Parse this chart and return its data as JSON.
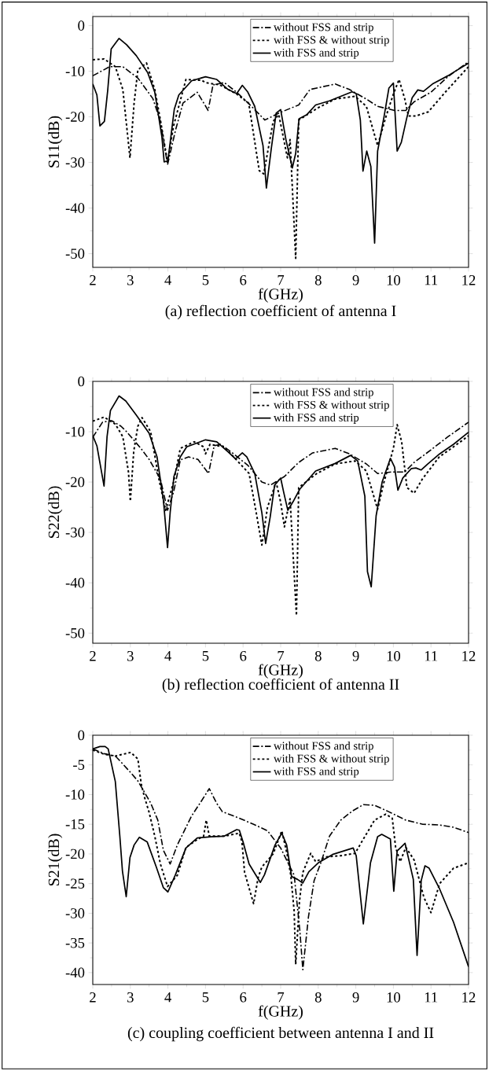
{
  "chart_data": [
    {
      "type": "line",
      "title": "(a)  reflection coefficient of antenna I",
      "xlabel": "f(GHz)",
      "ylabel": "S11(dB)",
      "xlim": [
        2,
        12
      ],
      "ylim": [
        -53,
        2
      ],
      "xticks": [
        2,
        3,
        4,
        5,
        6,
        7,
        8,
        9,
        10,
        11,
        12
      ],
      "yticks": [
        -50,
        -40,
        -30,
        -20,
        -10,
        0
      ],
      "legend": "top right",
      "grid": false,
      "marker": "none",
      "series": [
        {
          "name": "without FSS and strip",
          "color": "#000000",
          "line_style": "dashdot",
          "x": [
            2,
            2.45,
            2.8,
            3.2,
            3.6,
            3.8,
            3.99,
            4.2,
            4.4,
            4.78,
            5.07,
            5.2,
            5.5,
            5.83,
            6.2,
            6.58,
            7.0,
            7.48,
            7.78,
            8.45,
            8.83,
            9.28,
            9.58,
            10.03,
            10.33,
            10.55,
            11.0,
            11.45,
            12
          ],
          "values": [
            -11,
            -9,
            -9,
            -11.5,
            -16,
            -21,
            -30.5,
            -23,
            -17,
            -14.6,
            -18.6,
            -13,
            -12.5,
            -14.6,
            -17.5,
            -20.7,
            -19,
            -17.4,
            -14,
            -12.8,
            -14,
            -16.1,
            -17.7,
            -18.6,
            -18.6,
            -16.7,
            -14.6,
            -11.2,
            -7.9
          ]
        },
        {
          "name": "with FSS & without strip",
          "color": "#000000",
          "line_style": "dotted",
          "x": [
            2,
            2.3,
            2.6,
            2.8,
            2.99,
            3.1,
            3.2,
            3.43,
            3.65,
            3.8,
            3.99,
            4.15,
            4.48,
            4.9,
            5.0,
            5.38,
            5.83,
            6.15,
            6.43,
            6.55,
            6.8,
            6.95,
            7.18,
            7.25,
            7.4,
            7.48,
            8.0,
            8.45,
            8.98,
            9.28,
            9.58,
            9.8,
            10.0,
            10.15,
            10.3,
            10.4,
            10.6,
            10.93,
            11.38,
            12
          ],
          "values": [
            -7.5,
            -7.3,
            -9,
            -14,
            -29,
            -17,
            -9.7,
            -8.2,
            -14,
            -20.7,
            -29.9,
            -22,
            -11.8,
            -12,
            -12.5,
            -13,
            -15,
            -17,
            -31.8,
            -32.5,
            -21,
            -19.5,
            -29,
            -25,
            -51,
            -20.7,
            -18,
            -16.1,
            -15.5,
            -17.7,
            -26.3,
            -20,
            -15,
            -11.8,
            -16,
            -19.8,
            -19.8,
            -18.9,
            -14.6,
            -9
          ]
        },
        {
          "name": "with FSS and strip",
          "color": "#000000",
          "line_style": "solid",
          "x": [
            2,
            2.11,
            2.19,
            2.31,
            2.4,
            2.49,
            2.7,
            2.9,
            3.16,
            3.46,
            3.65,
            3.84,
            3.9,
            4.0,
            4.17,
            4.29,
            4.63,
            5.0,
            5.3,
            5.6,
            5.83,
            5.98,
            6.12,
            6.31,
            6.53,
            6.62,
            6.75,
            6.88,
            7.0,
            7.14,
            7.31,
            7.4,
            7.49,
            7.7,
            7.93,
            8.3,
            8.9,
            9.01,
            9.12,
            9.19,
            9.29,
            9.4,
            9.5,
            9.58,
            9.75,
            9.88,
            10.0,
            10.1,
            10.21,
            10.36,
            10.5,
            10.65,
            10.8,
            11.04,
            11.45,
            12
          ],
          "values": [
            -12.8,
            -15.2,
            -22,
            -21,
            -14,
            -5.1,
            -2.8,
            -4.2,
            -6.6,
            -10.3,
            -14.6,
            -24.4,
            -29.9,
            -29.6,
            -18.3,
            -15.2,
            -12.1,
            -11.2,
            -11.8,
            -14,
            -14.9,
            -13.1,
            -14.5,
            -17.7,
            -26.3,
            -35.6,
            -27,
            -19.2,
            -18.4,
            -25,
            -31.2,
            -28,
            -20.4,
            -19.5,
            -17.4,
            -16.5,
            -14.5,
            -14.9,
            -20.7,
            -31.9,
            -27.5,
            -30.9,
            -47.7,
            -27.5,
            -20,
            -13.7,
            -12.6,
            -27.5,
            -25.6,
            -20.1,
            -15.8,
            -14.1,
            -14.4,
            -12.8,
            -11,
            -8.2
          ]
        }
      ]
    },
    {
      "type": "line",
      "title": "(b)  reflection coefficient of antenna II",
      "xlabel": "f(GHz)",
      "ylabel": "S22(dB)",
      "xlim": [
        2,
        12
      ],
      "ylim": [
        -52,
        0
      ],
      "xticks": [
        2,
        3,
        4,
        5,
        6,
        7,
        8,
        9,
        10,
        11,
        12
      ],
      "yticks": [
        -50,
        -40,
        -30,
        -20,
        -10,
        0
      ],
      "legend": "top right",
      "grid": false,
      "marker": "none",
      "series": [
        {
          "name": "without FSS and strip",
          "color": "#000000",
          "line_style": "dashdot",
          "x": [
            2,
            2.26,
            2.5,
            2.75,
            2.9,
            3.28,
            3.5,
            3.8,
            3.99,
            4.15,
            4.33,
            4.55,
            4.8,
            5.08,
            5.23,
            5.4,
            5.75,
            6.13,
            6.5,
            6.73,
            7.1,
            7.48,
            7.85,
            8.45,
            8.83,
            9.28,
            9.58,
            9.95,
            10.3,
            10.55,
            11.0,
            11.45,
            12
          ],
          "values": [
            -11.1,
            -8.1,
            -7.8,
            -8.9,
            -10,
            -13.3,
            -15.5,
            -19.4,
            -25.6,
            -22,
            -15.6,
            -15,
            -15.5,
            -18.3,
            -12.8,
            -12.5,
            -14.4,
            -16.7,
            -20,
            -20.6,
            -18.9,
            -16.1,
            -14.2,
            -13.3,
            -14.4,
            -16.4,
            -18.3,
            -18,
            -18,
            -16.1,
            -13.6,
            -11,
            -8.1
          ]
        },
        {
          "name": "with FSS & without strip",
          "color": "#000000",
          "line_style": "dotted",
          "x": [
            2,
            2.3,
            2.6,
            2.8,
            2.95,
            3.0,
            3.09,
            3.2,
            3.31,
            3.54,
            3.76,
            3.94,
            4.15,
            4.33,
            4.7,
            4.95,
            5.0,
            5.12,
            5.5,
            5.75,
            6.16,
            6.35,
            6.5,
            6.65,
            6.88,
            7.0,
            7.1,
            7.25,
            7.42,
            7.48,
            7.96,
            8.45,
            8.98,
            9.28,
            9.58,
            9.75,
            10.0,
            10.1,
            10.22,
            10.36,
            10.55,
            10.77,
            11.22,
            11.6,
            12
          ],
          "values": [
            -7.9,
            -7.1,
            -8.5,
            -11,
            -18,
            -23.8,
            -13.9,
            -8.9,
            -7.2,
            -10,
            -19.4,
            -25.6,
            -20,
            -13.3,
            -12,
            -13,
            -14.4,
            -12.5,
            -13,
            -15,
            -18.3,
            -26.1,
            -32.5,
            -25,
            -20,
            -24,
            -28.9,
            -23.3,
            -46.5,
            -21.1,
            -18.3,
            -16.4,
            -15.8,
            -17.8,
            -25.4,
            -20,
            -13.3,
            -8.6,
            -12,
            -21.1,
            -22.2,
            -19.4,
            -15,
            -13,
            -10.8
          ]
        },
        {
          "name": "with FSS and strip",
          "color": "#000000",
          "line_style": "solid",
          "x": [
            2,
            2.11,
            2.3,
            2.38,
            2.47,
            2.7,
            2.88,
            3.16,
            3.5,
            3.71,
            3.88,
            3.99,
            4.06,
            4.16,
            4.33,
            4.5,
            5.0,
            5.3,
            5.6,
            5.8,
            5.98,
            6.1,
            6.31,
            6.5,
            6.6,
            6.72,
            6.84,
            7.0,
            7.08,
            7.19,
            7.33,
            7.51,
            7.93,
            8.45,
            8.86,
            9.05,
            9.24,
            9.31,
            9.41,
            9.54,
            9.7,
            9.92,
            10.03,
            10.12,
            10.25,
            10.48,
            10.6,
            10.74,
            10.9,
            11.23,
            11.6,
            12
          ],
          "values": [
            -10.8,
            -12.8,
            -20.8,
            -11,
            -5.8,
            -2.9,
            -3.9,
            -6.7,
            -10.3,
            -15,
            -23.6,
            -33,
            -26,
            -18.9,
            -15,
            -13,
            -11.6,
            -12,
            -14,
            -15.4,
            -14.2,
            -15,
            -18.3,
            -26.1,
            -32.2,
            -27,
            -20.6,
            -19.2,
            -22,
            -25.6,
            -23.9,
            -21.4,
            -17.8,
            -16.3,
            -14.7,
            -15.8,
            -22.8,
            -37.8,
            -40.8,
            -26.7,
            -20,
            -15.3,
            -17,
            -21.6,
            -19.2,
            -17.3,
            -17.2,
            -17.6,
            -16.5,
            -14.4,
            -12.5,
            -10.1
          ]
        }
      ]
    },
    {
      "type": "line",
      "title": "(c)  coupling coefficient between antenna I and II",
      "xlabel": "f(GHz)",
      "ylabel": "S21(dB)",
      "xlim": [
        2,
        12
      ],
      "ylim": [
        -42,
        0
      ],
      "xticks": [
        2,
        3,
        4,
        5,
        6,
        7,
        8,
        9,
        10,
        11,
        12
      ],
      "yticks": [
        -40,
        -35,
        -30,
        -25,
        -20,
        -15,
        -10,
        -5,
        0
      ],
      "legend": "top right",
      "grid": false,
      "marker": "none",
      "series": [
        {
          "name": "without FSS and strip",
          "color": "#000000",
          "line_style": "dashdot",
          "x": [
            2,
            2.3,
            2.6,
            2.75,
            2.98,
            3.2,
            3.54,
            3.73,
            3.88,
            4.06,
            4.25,
            4.63,
            4.9,
            5.1,
            5.3,
            5.45,
            5.83,
            6.28,
            6.65,
            7.0,
            7.36,
            7.51,
            7.59,
            7.74,
            7.89,
            8.08,
            8.3,
            8.6,
            8.9,
            9.2,
            9.5,
            9.88,
            10.33,
            10.78,
            11.2,
            11.6,
            12
          ],
          "values": [
            -2.3,
            -3.1,
            -3.5,
            -4.5,
            -6.1,
            -7.7,
            -11.4,
            -14.3,
            -19.4,
            -21.7,
            -18.5,
            -13.6,
            -11,
            -9,
            -11.5,
            -12.9,
            -13.8,
            -15,
            -16.1,
            -19,
            -23.6,
            -32.9,
            -39.5,
            -30.6,
            -24.5,
            -21.3,
            -17,
            -14.3,
            -12.8,
            -11.7,
            -11.8,
            -12.9,
            -14.3,
            -15,
            -15.1,
            -15.5,
            -16.4
          ]
        },
        {
          "name": "with FSS & without strip",
          "color": "#000000",
          "line_style": "dotted",
          "x": [
            2,
            2.3,
            2.6,
            3.01,
            3.2,
            3.29,
            3.37,
            3.5,
            3.65,
            3.8,
            3.99,
            4.25,
            4.48,
            4.8,
            4.95,
            5.02,
            5.1,
            5.5,
            5.9,
            5.97,
            6.04,
            6.28,
            6.4,
            6.5,
            6.8,
            7.03,
            7.17,
            7.27,
            7.36,
            7.4,
            7.5,
            7.59,
            7.8,
            7.93,
            8.2,
            8.6,
            8.98,
            9.2,
            9.5,
            9.8,
            9.97,
            10.06,
            10.18,
            10.33,
            10.55,
            10.81,
            11.0,
            11.23,
            11.6,
            12
          ],
          "values": [
            -2.5,
            -3.2,
            -3.5,
            -2.9,
            -4,
            -8.2,
            -10.3,
            -13,
            -17,
            -21.7,
            -25.5,
            -23.6,
            -18.9,
            -17.5,
            -17,
            -14.3,
            -17,
            -17,
            -16.5,
            -18,
            -23.1,
            -28.4,
            -24,
            -22.2,
            -20,
            -16.1,
            -20,
            -23.6,
            -29.7,
            -38.6,
            -28,
            -23.1,
            -19.9,
            -21.3,
            -20.5,
            -20.3,
            -19.9,
            -17.5,
            -14.3,
            -13.3,
            -14,
            -18.9,
            -21.3,
            -18.9,
            -21,
            -27.3,
            -29.9,
            -25,
            -22.4,
            -21.5
          ]
        },
        {
          "name": "with FSS and strip",
          "color": "#000000",
          "line_style": "solid",
          "x": [
            2,
            2.19,
            2.33,
            2.41,
            2.6,
            2.72,
            2.79,
            2.89,
            2.99,
            3.1,
            3.24,
            3.45,
            3.69,
            3.88,
            4.0,
            4.2,
            4.48,
            4.78,
            5.15,
            5.5,
            5.83,
            5.9,
            6.0,
            6.16,
            6.46,
            6.57,
            6.85,
            7.03,
            7.16,
            7.29,
            7.45,
            7.59,
            7.75,
            8.0,
            8.38,
            8.83,
            8.93,
            9.01,
            9.2,
            9.39,
            9.58,
            9.69,
            9.92,
            10.01,
            10.1,
            10.31,
            10.53,
            10.63,
            10.74,
            10.84,
            10.95,
            11.23,
            11.6,
            12
          ],
          "values": [
            -2.3,
            -1.9,
            -1.9,
            -2.3,
            -7.8,
            -17,
            -22.9,
            -27.2,
            -20.6,
            -18.5,
            -17.2,
            -18,
            -22.2,
            -25.7,
            -26.4,
            -23.5,
            -19,
            -17.3,
            -17.1,
            -17,
            -15.9,
            -16,
            -18,
            -21.7,
            -24.8,
            -23.5,
            -18.5,
            -16.5,
            -18.5,
            -23.8,
            -24.3,
            -24.9,
            -23,
            -21.5,
            -20.1,
            -19.2,
            -19,
            -20.3,
            -31.8,
            -21.5,
            -17.1,
            -16.7,
            -17.5,
            -26.3,
            -19.5,
            -18.2,
            -24.3,
            -37.1,
            -24.5,
            -22,
            -22.4,
            -25.9,
            -31.5,
            -39
          ]
        }
      ]
    }
  ]
}
